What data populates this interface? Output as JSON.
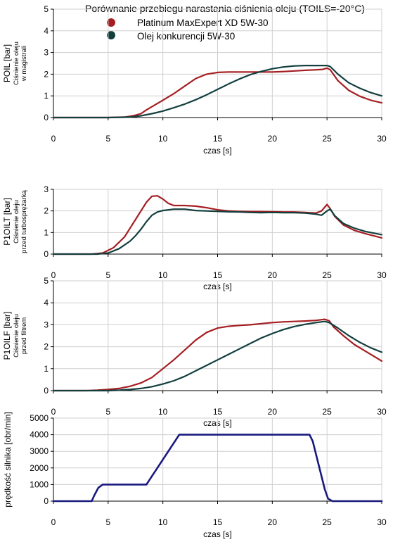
{
  "chart_data": {
    "title": "Porównanie przebiegu narastania ciśnienia oleju (TOILS=-20°C)",
    "legend": {
      "placement": "top",
      "entries": [
        {
          "name": "Platinum MaxExpert XD 5W-30",
          "color": "#a51e22"
        },
        {
          "name": "Olej konkurencji 5W-30",
          "color": "#123f3e"
        }
      ]
    },
    "x_ticks": [
      "0",
      "5",
      "10",
      "15",
      "20",
      "25",
      "30"
    ],
    "charts": [
      {
        "type": "line",
        "xlabel": "czas [s]",
        "ylabel": "POIL [bar]",
        "ylabel_sub": [
          "Ciśnienie oleju",
          "w magistrali"
        ],
        "xlim": [
          0,
          30
        ],
        "ylim": [
          0,
          5
        ],
        "y_ticks": [
          "0",
          "1",
          "2",
          "3",
          "4",
          "5"
        ],
        "grid": true,
        "series": [
          {
            "name": "Platinum MaxExpert XD 5W-30",
            "color": "#a51e22",
            "x": [
              0,
              5,
              6.5,
              7.3,
              8,
              8.5,
              9,
              10,
              11,
              12,
              13,
              14,
              15,
              16,
              17,
              18,
              19,
              20,
              21,
              22,
              23,
              24,
              24.6,
              25,
              25.3,
              26,
              27,
              28,
              29,
              30
            ],
            "y": [
              0,
              0,
              0.02,
              0.08,
              0.18,
              0.35,
              0.5,
              0.8,
              1.1,
              1.45,
              1.8,
              2.0,
              2.08,
              2.1,
              2.1,
              2.1,
              2.1,
              2.1,
              2.12,
              2.15,
              2.18,
              2.2,
              2.22,
              2.28,
              2.2,
              1.7,
              1.25,
              0.98,
              0.8,
              0.68
            ]
          },
          {
            "name": "Olej konkurencji 5W-30",
            "color": "#123f3e",
            "x": [
              0,
              5,
              7,
              8,
              9,
              10,
              11,
              12,
              13,
              14,
              15,
              16,
              17,
              18,
              19,
              20,
              21,
              22,
              23,
              24,
              25,
              25.3,
              26,
              27,
              28,
              29,
              30
            ],
            "y": [
              0,
              0,
              0.02,
              0.08,
              0.18,
              0.3,
              0.45,
              0.62,
              0.82,
              1.05,
              1.3,
              1.55,
              1.78,
              1.98,
              2.13,
              2.25,
              2.33,
              2.38,
              2.4,
              2.4,
              2.4,
              2.35,
              2.0,
              1.6,
              1.35,
              1.15,
              1.0
            ]
          }
        ]
      },
      {
        "type": "line",
        "xlabel": "czas [s]",
        "ylabel": "P1OILT [bar]",
        "ylabel_sub": [
          "Ciśnienie oleju",
          "przed turbosprężarką"
        ],
        "xlim": [
          0,
          30
        ],
        "ylim": [
          0,
          3
        ],
        "y_ticks": [
          "0",
          "1",
          "2",
          "3"
        ],
        "grid": true,
        "series": [
          {
            "name": "Platinum MaxExpert XD 5W-30",
            "color": "#a51e22",
            "x": [
              0,
              3.5,
              4.5,
              5.5,
              6.5,
              7,
              7.5,
              8,
              8.5,
              9,
              9.5,
              10,
              10.5,
              11,
              12,
              13,
              14,
              15,
              16,
              17,
              18,
              19,
              20,
              21,
              22,
              23,
              24,
              24.5,
              25,
              25.3,
              25.7,
              26.5,
              27.5,
              28.5,
              29.5,
              30
            ],
            "y": [
              0,
              0,
              0.05,
              0.3,
              0.8,
              1.2,
              1.6,
              2.0,
              2.4,
              2.68,
              2.7,
              2.55,
              2.35,
              2.25,
              2.25,
              2.22,
              2.15,
              2.05,
              2.0,
              1.98,
              1.97,
              1.97,
              1.96,
              1.95,
              1.95,
              1.93,
              1.9,
              2.0,
              2.3,
              2.1,
              1.75,
              1.35,
              1.1,
              0.95,
              0.82,
              0.75
            ]
          },
          {
            "name": "Olej konkurencji 5W-30",
            "color": "#123f3e",
            "x": [
              0,
              4,
              5,
              6,
              7,
              7.5,
              8,
              8.5,
              9,
              9.5,
              10,
              11,
              12,
              13,
              14,
              15,
              16,
              17,
              18,
              19,
              20,
              21,
              22,
              23,
              24,
              24.5,
              25,
              25.3,
              25.7,
              26.5,
              27.5,
              28.5,
              29.5,
              30
            ],
            "y": [
              0,
              0,
              0.05,
              0.25,
              0.6,
              0.85,
              1.15,
              1.5,
              1.8,
              1.95,
              2.02,
              2.08,
              2.08,
              2.02,
              2.0,
              1.98,
              1.96,
              1.95,
              1.93,
              1.92,
              1.93,
              1.92,
              1.92,
              1.9,
              1.85,
              1.8,
              2.0,
              2.08,
              1.78,
              1.42,
              1.2,
              1.05,
              0.95,
              0.9
            ]
          }
        ]
      },
      {
        "type": "line",
        "xlabel": "czas [s]",
        "ylabel": "P1OILF [bar]",
        "ylabel_sub": [
          "Ciśnienie oleju",
          "przed filtrem"
        ],
        "xlim": [
          0,
          30
        ],
        "ylim": [
          0,
          5
        ],
        "y_ticks": [
          "0",
          "1",
          "2",
          "3",
          "4",
          "5"
        ],
        "grid": true,
        "series": [
          {
            "name": "Platinum MaxExpert XD 5W-30",
            "color": "#a51e22",
            "x": [
              0,
              3,
              4,
              5,
              6,
              7,
              8,
              9,
              10,
              11,
              12,
              13,
              14,
              15,
              16,
              17,
              18,
              19,
              20,
              21,
              22,
              23,
              24,
              24.8,
              25.2,
              25.6,
              26.5,
              27.5,
              28.5,
              29.5,
              30
            ],
            "y": [
              0,
              0,
              0.02,
              0.05,
              0.1,
              0.2,
              0.35,
              0.6,
              1.0,
              1.4,
              1.85,
              2.3,
              2.65,
              2.85,
              2.93,
              2.97,
              3.0,
              3.05,
              3.1,
              3.13,
              3.15,
              3.17,
              3.2,
              3.25,
              3.18,
              2.9,
              2.5,
              2.1,
              1.8,
              1.5,
              1.35
            ]
          },
          {
            "name": "Olej konkurencji 5W-30",
            "color": "#123f3e",
            "x": [
              0,
              5,
              6,
              7,
              8,
              9,
              10,
              11,
              12,
              13,
              14,
              15,
              16,
              17,
              18,
              19,
              20,
              21,
              22,
              23,
              24,
              24.8,
              25.2,
              26,
              27,
              28,
              29,
              30
            ],
            "y": [
              0,
              0,
              0.02,
              0.05,
              0.1,
              0.18,
              0.3,
              0.45,
              0.65,
              0.9,
              1.15,
              1.4,
              1.65,
              1.9,
              2.15,
              2.4,
              2.6,
              2.78,
              2.92,
              3.02,
              3.1,
              3.15,
              3.1,
              2.85,
              2.5,
              2.2,
              1.95,
              1.75
            ]
          }
        ]
      },
      {
        "type": "line",
        "xlabel": "czas [s]",
        "ylabel": "prędkość silnika [obr/min]",
        "ylabel_sub": [],
        "xlim": [
          0,
          30
        ],
        "ylim": [
          0,
          5000
        ],
        "y_ticks": [
          "0",
          "1000",
          "2000",
          "3000",
          "4000",
          "5000"
        ],
        "grid": true,
        "series": [
          {
            "name": "",
            "color": "#1a1a7e",
            "x": [
              0,
              3.5,
              3.7,
              4.1,
              4.5,
              8.5,
              8.7,
              11.5,
              11.7,
              23.4,
              23.7,
              24.8,
              25.1,
              25.5,
              30
            ],
            "y": [
              0,
              0,
              300,
              800,
              1000,
              1000,
              1200,
              4000,
              4000,
              4000,
              3600,
              700,
              150,
              0,
              0
            ]
          }
        ]
      }
    ]
  }
}
